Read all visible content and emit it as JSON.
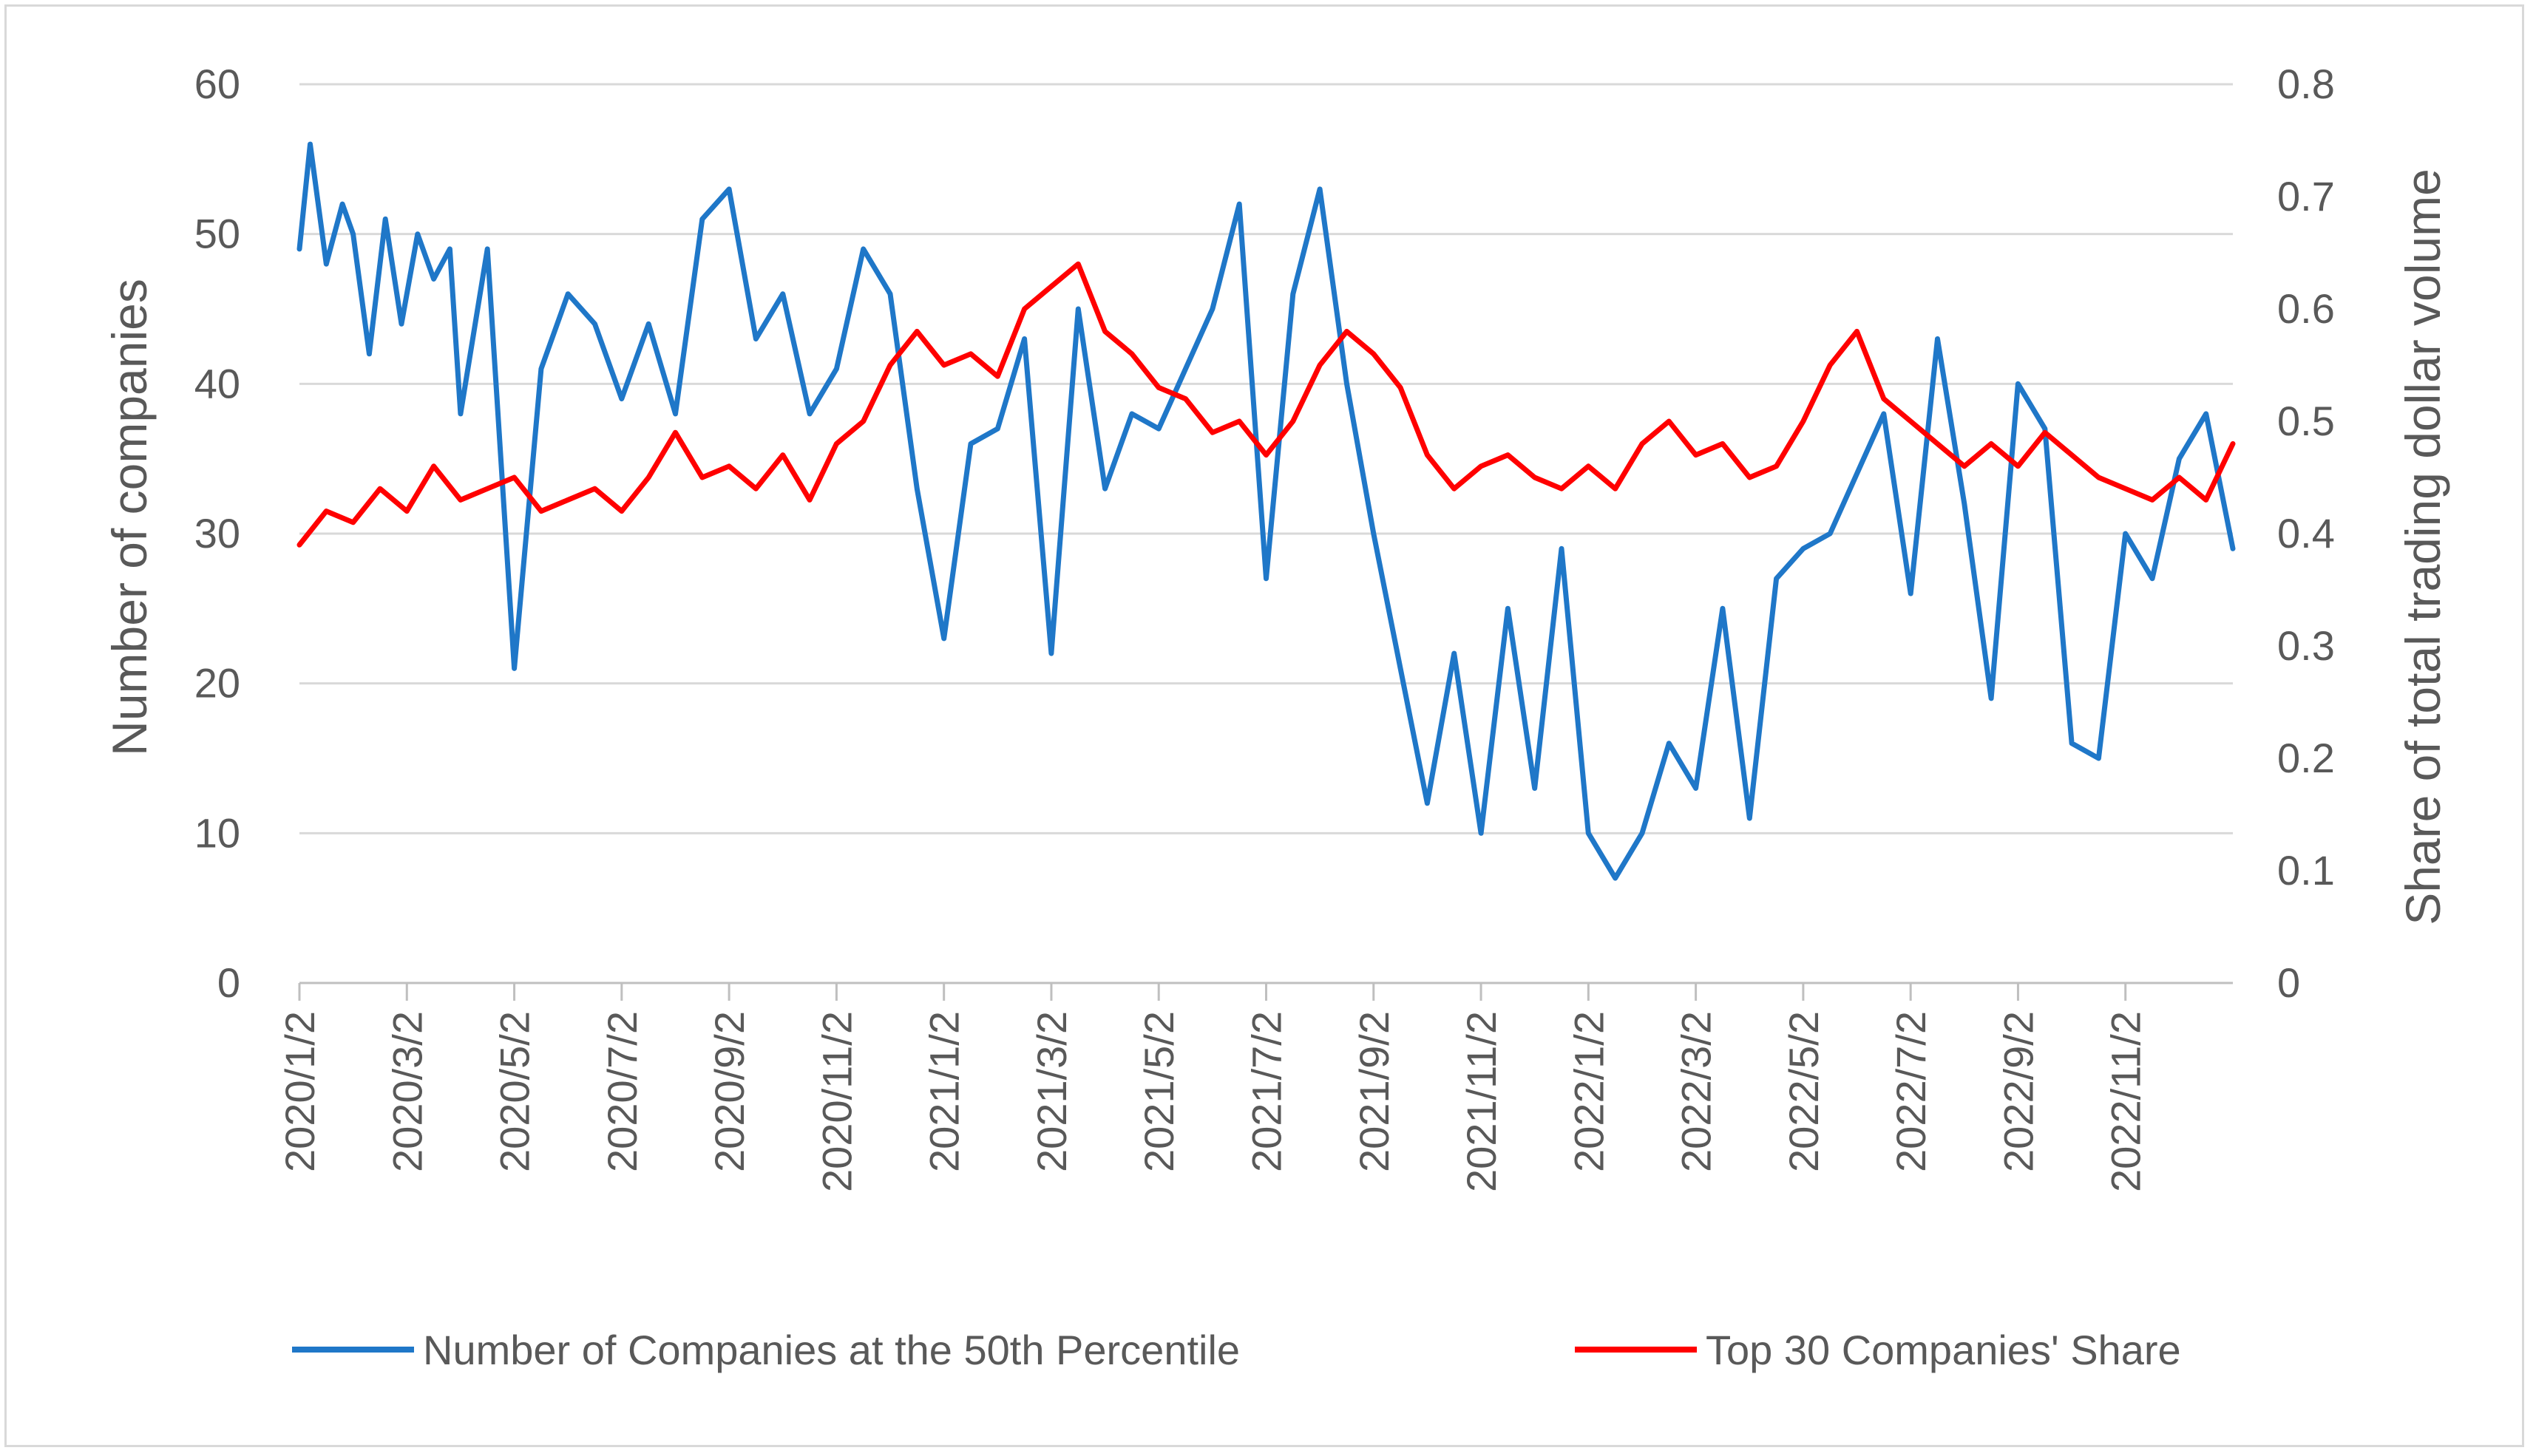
{
  "chart_data": {
    "type": "line",
    "title": "",
    "ylabel": "Number of companies",
    "y2label": "Share of total trading dollar volume",
    "ylim": [
      0,
      60
    ],
    "y2lim": [
      0,
      0.8
    ],
    "y_ticks": [
      "0",
      "10",
      "20",
      "30",
      "40",
      "50",
      "60"
    ],
    "y2_ticks": [
      "0",
      "0.1",
      "0.2",
      "0.3",
      "0.4",
      "0.5",
      "0.6",
      "0.7",
      "0.8"
    ],
    "x_ticks": [
      "2020/1/2",
      "2020/3/2",
      "2020/5/2",
      "2020/7/2",
      "2020/9/2",
      "2020/11/2",
      "2021/1/2",
      "2021/3/2",
      "2021/5/2",
      "2021/7/2",
      "2021/9/2",
      "2021/11/2",
      "2022/1/2",
      "2022/3/2",
      "2022/5/2",
      "2022/7/2",
      "2022/9/2",
      "2022/11/2"
    ],
    "legend_position": "bottom",
    "series": [
      {
        "name": "Number of Companies at the 50th Percentile",
        "axis": "left",
        "color": "#1f77c8",
        "x": [
          0,
          0.2,
          0.5,
          0.8,
          1.0,
          1.3,
          1.6,
          1.9,
          2.2,
          2.5,
          2.8,
          3.0,
          3.5,
          4.0,
          4.5,
          5.0,
          5.5,
          6.0,
          6.5,
          7.0,
          7.5,
          8.0,
          8.5,
          9.0,
          9.5,
          10.0,
          10.5,
          11.0,
          11.5,
          12.0,
          12.5,
          13.0,
          13.5,
          14.0,
          14.5,
          15.0,
          15.5,
          16.0,
          16.5,
          17.0,
          17.5,
          18.0,
          18.5,
          19.0,
          19.5,
          20.0,
          20.5,
          21.0,
          21.5,
          22.0,
          22.5,
          23.0,
          23.5,
          24.0,
          24.5,
          25.0,
          25.5,
          26.0,
          26.5,
          27.0,
          27.5,
          28.0,
          28.5,
          29.0,
          29.5,
          30.0,
          30.5,
          31.0,
          31.5,
          32.0,
          32.5,
          33.0,
          33.5,
          34.0,
          34.5,
          35.0,
          35.5,
          36.0
        ],
        "values": [
          49,
          56,
          48,
          52,
          50,
          42,
          51,
          44,
          50,
          47,
          49,
          38,
          49,
          21,
          41,
          46,
          44,
          39,
          44,
          38,
          51,
          53,
          43,
          46,
          38,
          41,
          49,
          46,
          33,
          23,
          36,
          37,
          43,
          22,
          45,
          33,
          38,
          37,
          41,
          45,
          52,
          27,
          46,
          53,
          40,
          30,
          21,
          12,
          22,
          10,
          25,
          13,
          29,
          10,
          7,
          10,
          16,
          13,
          25,
          11,
          27,
          29,
          30,
          34,
          38,
          26,
          43,
          32,
          19,
          40,
          37,
          16,
          15,
          30,
          27,
          35,
          38,
          29
        ],
        "note": "approximate values sampled roughly monthly from 2020/1 to 2022/12 (x = months since 2020/1/2)"
      },
      {
        "name": "Top 30 Companies' Share",
        "axis": "right",
        "color": "#ff0000",
        "x": [
          0,
          0.5,
          1.0,
          1.5,
          2.0,
          2.5,
          3.0,
          3.5,
          4.0,
          4.5,
          5.0,
          5.5,
          6.0,
          6.5,
          7.0,
          7.5,
          8.0,
          8.5,
          9.0,
          9.5,
          10.0,
          10.5,
          11.0,
          11.5,
          12.0,
          12.5,
          13.0,
          13.5,
          14.0,
          14.5,
          15.0,
          15.5,
          16.0,
          16.5,
          17.0,
          17.5,
          18.0,
          18.5,
          19.0,
          19.5,
          20.0,
          20.5,
          21.0,
          21.5,
          22.0,
          22.5,
          23.0,
          23.5,
          24.0,
          24.5,
          25.0,
          25.5,
          26.0,
          26.5,
          27.0,
          27.5,
          28.0,
          28.5,
          29.0,
          29.5,
          30.0,
          30.5,
          31.0,
          31.5,
          32.0,
          32.5,
          33.0,
          33.5,
          34.0,
          34.5,
          35.0,
          35.5,
          36.0
        ],
        "values": [
          0.39,
          0.42,
          0.41,
          0.44,
          0.42,
          0.46,
          0.43,
          0.44,
          0.45,
          0.42,
          0.43,
          0.44,
          0.42,
          0.45,
          0.49,
          0.45,
          0.46,
          0.44,
          0.47,
          0.43,
          0.48,
          0.5,
          0.55,
          0.58,
          0.55,
          0.56,
          0.54,
          0.6,
          0.62,
          0.64,
          0.58,
          0.56,
          0.53,
          0.52,
          0.49,
          0.5,
          0.47,
          0.5,
          0.55,
          0.58,
          0.56,
          0.53,
          0.47,
          0.44,
          0.46,
          0.47,
          0.45,
          0.44,
          0.46,
          0.44,
          0.48,
          0.5,
          0.47,
          0.48,
          0.45,
          0.46,
          0.5,
          0.55,
          0.58,
          0.52,
          0.5,
          0.48,
          0.46,
          0.48,
          0.46,
          0.49,
          0.47,
          0.45,
          0.44,
          0.43,
          0.45,
          0.43,
          0.48
        ],
        "note": "approximate values sampled semi-monthly from 2020/1 to 2022/12"
      }
    ]
  }
}
